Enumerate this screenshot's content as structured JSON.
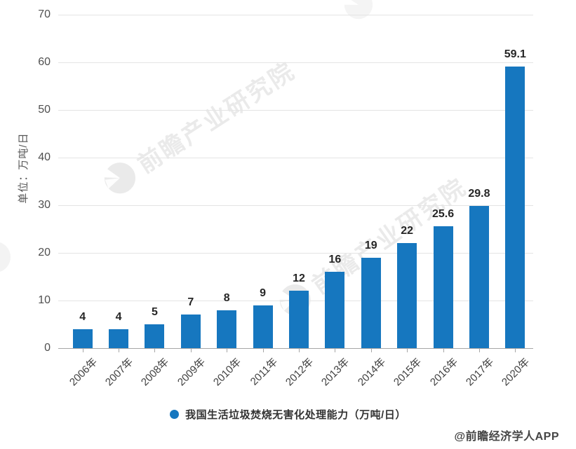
{
  "chart_data": {
    "type": "bar",
    "title": "",
    "categories": [
      "2006年",
      "2007年",
      "2008年",
      "2009年",
      "2010年",
      "2011年",
      "2012年",
      "2013年",
      "2014年",
      "2015年",
      "2016年",
      "2017年",
      "2020年"
    ],
    "values": [
      4,
      4,
      5,
      7,
      8,
      9,
      12,
      16,
      19,
      22,
      25.6,
      29.8,
      59.1
    ],
    "value_labels": [
      "4",
      "4",
      "5",
      "7",
      "8",
      "9",
      "12",
      "16",
      "19",
      "22",
      "25.6",
      "29.8",
      "59.1"
    ],
    "xlabel": "",
    "ylabel": "单位：万吨/日",
    "ylim": [
      0,
      70
    ],
    "yticks": [
      0,
      10,
      20,
      30,
      40,
      50,
      60,
      70
    ],
    "grid": true,
    "legend_position": "bottom",
    "legend_label": "我国生活垃圾焚烧无害化处理能力（万吨/日）",
    "bar_color": "#1677bf",
    "value_label_color": "#262626"
  },
  "watermark": {
    "text": "前瞻产业研究院"
  },
  "attribution": "@前瞻经济学人APP"
}
